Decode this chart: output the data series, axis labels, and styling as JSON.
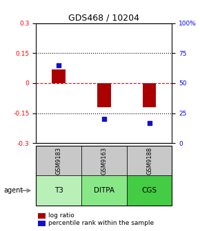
{
  "title": "GDS468 / 10204",
  "samples": [
    "GSM9183",
    "GSM9163",
    "GSM9188"
  ],
  "agents": [
    "T3",
    "DITPA",
    "CGS"
  ],
  "log_ratios": [
    0.07,
    -0.12,
    -0.12
  ],
  "percentile_ranks": [
    65,
    20,
    17
  ],
  "ylim_left": [
    -0.3,
    0.3
  ],
  "ylim_right": [
    0,
    100
  ],
  "yticks_left": [
    -0.3,
    -0.15,
    0,
    0.15,
    0.3
  ],
  "yticks_right": [
    0,
    25,
    50,
    75,
    100
  ],
  "ytick_labels_right": [
    "0",
    "25",
    "50",
    "75",
    "100%"
  ],
  "bar_color": "#AA0000",
  "square_color": "#1111CC",
  "agent_colors": [
    "#b8f0b8",
    "#88e888",
    "#44cc44"
  ],
  "sample_bg_color": "#c8c8c8",
  "legend_bar_label": "log ratio",
  "legend_sq_label": "percentile rank within the sample",
  "agent_label": "agent",
  "bar_width": 0.3
}
